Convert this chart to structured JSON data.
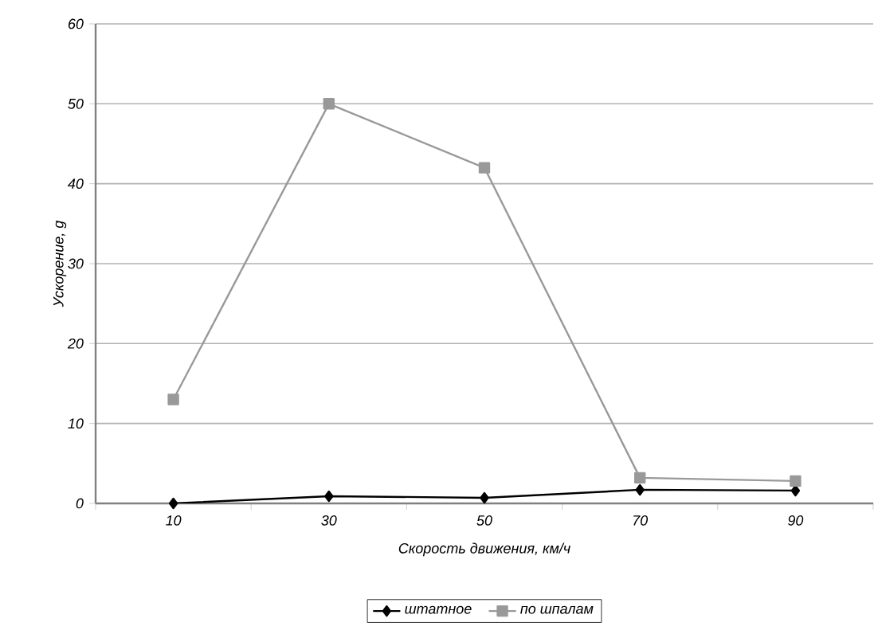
{
  "chart_data": {
    "type": "line",
    "xlabel": "Скорость движения, км/ч",
    "ylabel": "Ускорение, g",
    "categories": [
      "10",
      "30",
      "50",
      "70",
      "90"
    ],
    "series": [
      {
        "name": "штатное",
        "color": "#000000",
        "marker": "diamond",
        "values": [
          0,
          0.9,
          0.7,
          1.7,
          1.6
        ]
      },
      {
        "name": "по шпалам",
        "color": "#999999",
        "marker": "square",
        "values": [
          13,
          50,
          42,
          3.2,
          2.8
        ]
      }
    ],
    "ylim": [
      0,
      60
    ],
    "yticks": [
      0,
      10,
      20,
      30,
      40,
      50,
      60
    ],
    "grid": "y",
    "legend": "bottom"
  }
}
